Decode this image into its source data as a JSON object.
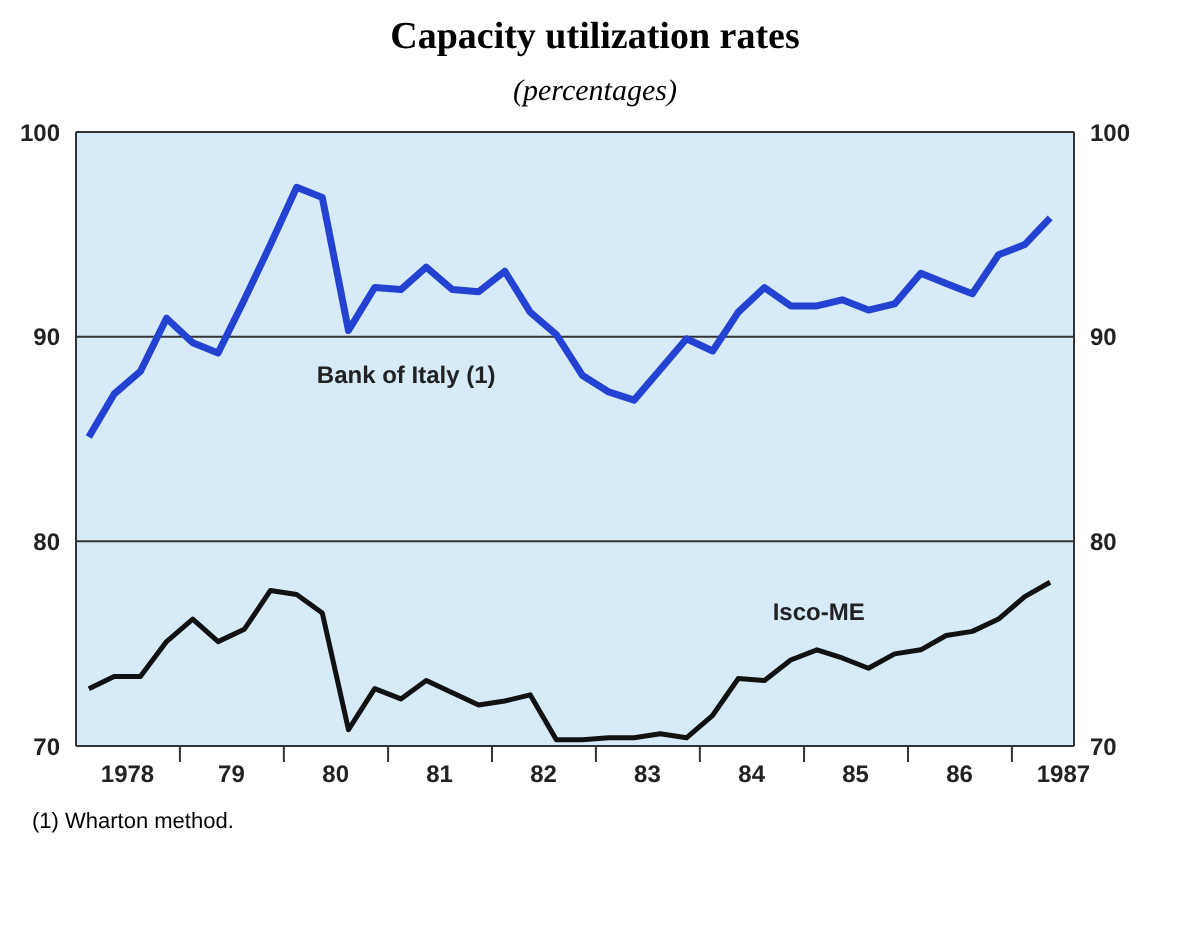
{
  "chart_data": {
    "type": "line",
    "title": "Capacity utilization rates",
    "subtitle": "(percentages)",
    "x": [
      "1978-02-15",
      "1978-05-15",
      "1978-08-15",
      "1978-11-15",
      "1979-02-15",
      "1979-05-15",
      "1979-08-15",
      "1979-11-15",
      "1980-02-15",
      "1980-05-15",
      "1980-08-15",
      "1980-11-15",
      "1981-02-15",
      "1981-05-15",
      "1981-08-15",
      "1981-11-15",
      "1982-02-15",
      "1982-05-15",
      "1982-08-15",
      "1982-11-15",
      "1983-02-15",
      "1983-05-15",
      "1983-08-15",
      "1983-11-15",
      "1984-02-15",
      "1984-05-15",
      "1984-08-15",
      "1984-11-15",
      "1985-02-15",
      "1985-05-15",
      "1985-08-15",
      "1985-11-15",
      "1986-02-15",
      "1986-05-15",
      "1986-08-15",
      "1986-11-15",
      "1987-02-15",
      "1987-05-15"
    ],
    "xlim": [
      "1978-01-01",
      "1987-08-07"
    ],
    "xticks": [
      {
        "value": "1978-07-01",
        "label": "1978"
      },
      {
        "value": "1979-01-01",
        "label": null
      },
      {
        "value": "1979-07-01",
        "label": "79"
      },
      {
        "value": "1980-01-01",
        "label": null
      },
      {
        "value": "1980-07-01",
        "label": "80"
      },
      {
        "value": "1981-01-01",
        "label": null
      },
      {
        "value": "1981-07-01",
        "label": "81"
      },
      {
        "value": "1982-01-01",
        "label": null
      },
      {
        "value": "1982-07-01",
        "label": "82"
      },
      {
        "value": "1983-01-01",
        "label": null
      },
      {
        "value": "1983-07-01",
        "label": "83"
      },
      {
        "value": "1984-01-01",
        "label": null
      },
      {
        "value": "1984-07-01",
        "label": "84"
      },
      {
        "value": "1985-01-01",
        "label": null
      },
      {
        "value": "1985-07-01",
        "label": "85"
      },
      {
        "value": "1986-01-01",
        "label": null
      },
      {
        "value": "1986-07-01",
        "label": "86"
      },
      {
        "value": "1987-01-01",
        "label": null
      },
      {
        "value": "1987-07-01",
        "label": "1987"
      }
    ],
    "ylim": [
      70,
      100
    ],
    "yticks": [
      70,
      80,
      90,
      100
    ],
    "y2lim": [
      70,
      100
    ],
    "y2ticks": [
      70,
      80,
      90,
      100
    ],
    "grid": "y",
    "line_style": "solid",
    "marker": "none",
    "series": [
      {
        "name": "Bank of Italy (1)",
        "color": "#2342d2",
        "values": [
          85.1,
          87.2,
          88.3,
          90.9,
          89.7,
          89.2,
          91.8,
          94.5,
          97.3,
          96.8,
          90.3,
          92.4,
          92.3,
          93.4,
          92.3,
          92.2,
          93.2,
          91.2,
          90.1,
          88.1,
          87.3,
          86.9,
          88.4,
          89.9,
          89.3,
          91.2,
          92.4,
          91.5,
          91.5,
          91.8,
          91.3,
          91.6,
          93.1,
          92.6,
          92.1,
          94.0,
          94.5,
          95.8
        ]
      },
      {
        "name": "Isco-ME",
        "color": "#111111",
        "values": [
          72.8,
          73.4,
          73.4,
          75.1,
          76.2,
          75.1,
          75.7,
          77.6,
          77.4,
          76.5,
          70.8,
          72.8,
          72.3,
          73.2,
          72.6,
          72.0,
          72.2,
          72.5,
          70.3,
          70.3,
          70.4,
          70.4,
          70.6,
          70.4,
          71.5,
          73.3,
          73.2,
          74.2,
          74.7,
          74.3,
          73.8,
          74.5,
          74.7,
          75.4,
          75.6,
          76.2,
          77.3,
          78.0
        ]
      }
    ],
    "annotations": [
      "(1) Wharton method."
    ]
  }
}
